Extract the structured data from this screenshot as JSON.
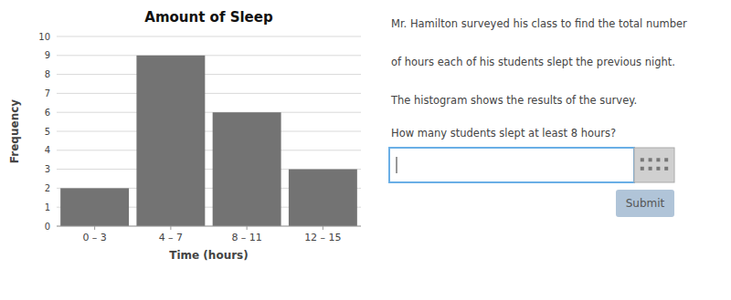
{
  "chart_data": {
    "type": "bar",
    "title": "Amount of Sleep",
    "categories": [
      "0 – 3",
      "4 – 7",
      "8 – 11",
      "12 – 15"
    ],
    "values": [
      2,
      9,
      6,
      3
    ],
    "color": "#737373",
    "xlabel": "Time (hours)",
    "ylabel": "Frequency",
    "ylim": [
      0,
      10
    ],
    "yticks": [
      0,
      1,
      2,
      3,
      4,
      5,
      6,
      7,
      8,
      9,
      10
    ],
    "grid": true,
    "annotations": [
      "Mr. Hamilton surveyed his class to find the total number",
      "of hours each of his students slept the previous night.",
      "The histogram shows the results of the survey.",
      "How many students slept at least 8 hours?",
      "Submit"
    ]
  }
}
